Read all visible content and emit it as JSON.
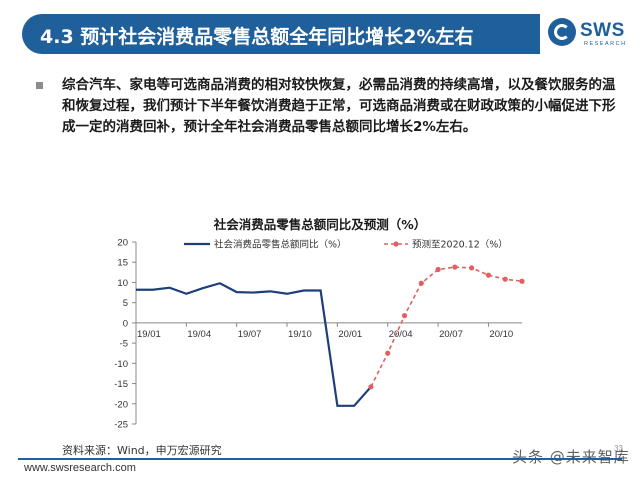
{
  "slide": {
    "title": "4.3 预计社会消费品零售总额全年同比增长2%左右",
    "bullet": "综合汽车、家电等可选商品消费的相对较快恢复，必需品消费的持续高增，以及餐饮服务的温和恢复过程，我们预计下半年餐饮消费趋于正常，可选商品消费或在财政政策的小幅促进下形成一定的消费回补，预计全年社会消费品零售总额同比增长2%左右。",
    "source": "资料来源：Wind，申万宏源研究",
    "footer_url": "www.swsresearch.com",
    "page_number": "33",
    "watermark": "头条 @未来智库"
  },
  "logo": {
    "name": "SWS",
    "sub": "RESEARCH",
    "icon": "sws-logo-icon"
  },
  "colors": {
    "title_bar": "#1f5f9a",
    "actual_series": "#1f3f7a",
    "forecast_series": "#e06060",
    "footer_line": "#1f5f9a"
  },
  "chart_data": {
    "type": "line",
    "title": "社会消费品零售总额同比及预测（%）",
    "ylim": [
      -25,
      20
    ],
    "yticks": [
      20,
      15,
      10,
      5,
      0,
      -5,
      -10,
      -15,
      -20,
      -25
    ],
    "x_tick_labels": [
      "19/01",
      "19/04",
      "19/07",
      "19/10",
      "20/01",
      "20/04",
      "20/07",
      "20/10"
    ],
    "legend_position": "top",
    "grid": false,
    "series": [
      {
        "name": "社会消费品零售总额同比（%）",
        "style": "solid",
        "x": [
          "19/01",
          "19/02",
          "19/03",
          "19/04",
          "19/05",
          "19/06",
          "19/07",
          "19/08",
          "19/09",
          "19/10",
          "19/11",
          "19/12",
          "20/01",
          "20/02",
          "20/03"
        ],
        "values": [
          8.2,
          8.2,
          8.7,
          7.2,
          8.6,
          9.8,
          7.6,
          7.5,
          7.8,
          7.2,
          8.0,
          8.0,
          -20.5,
          -20.5,
          -15.8
        ]
      },
      {
        "name": "预测至2020.12（%）",
        "style": "dashed",
        "x": [
          "20/03",
          "20/04",
          "20/05",
          "20/06",
          "20/07",
          "20/08",
          "20/09",
          "20/10",
          "20/11",
          "20/12"
        ],
        "values": [
          -15.8,
          -7.5,
          1.8,
          9.8,
          13.2,
          13.8,
          13.6,
          11.8,
          10.8,
          10.3
        ]
      }
    ]
  }
}
